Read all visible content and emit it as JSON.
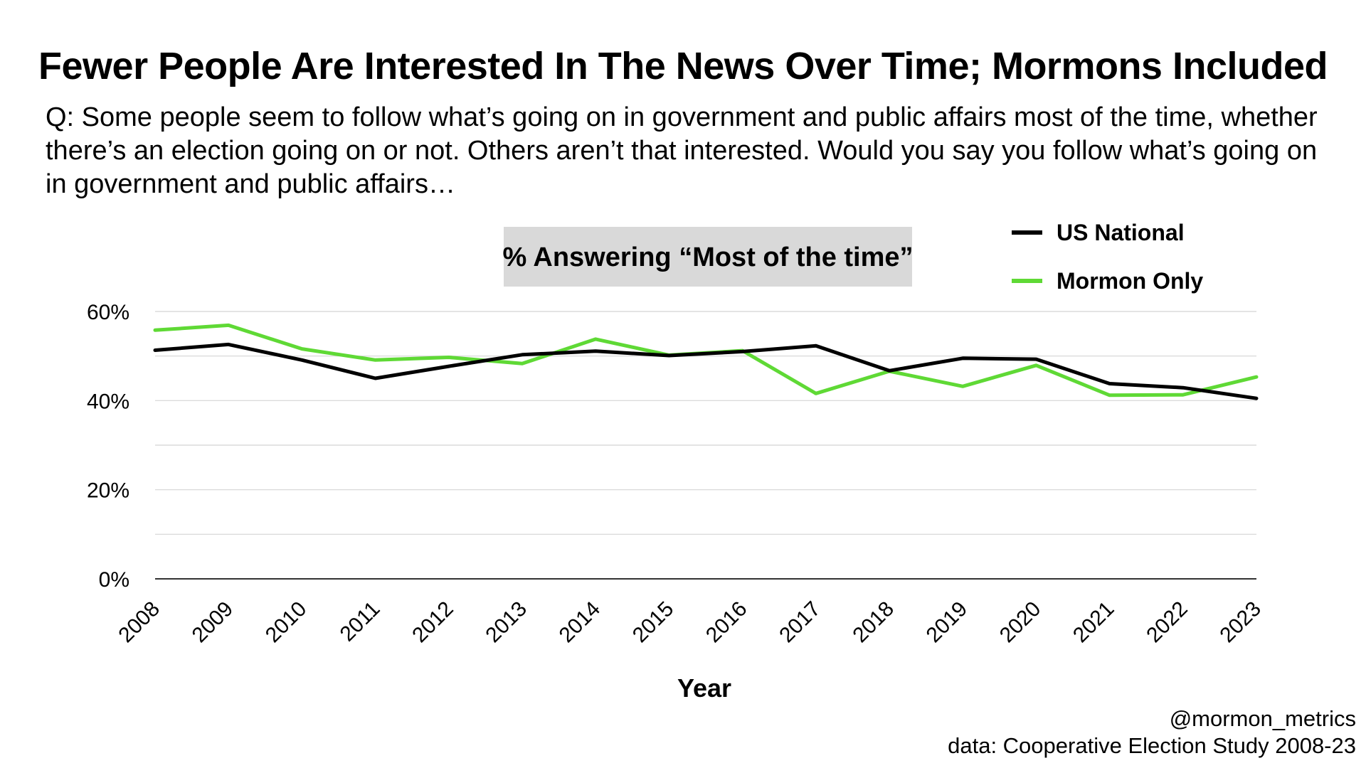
{
  "title": "Fewer People Are Interested In The News Over Time; Mormons Included",
  "subtitle": "Q: Some people seem to follow what’s going on in government and public affairs most of the time, whether there’s an election going on or not. Others aren’t that interested. Would you say you follow what’s going on in government and public affairs…",
  "credit": {
    "handle": "@mormon_metrics",
    "source": "data: Cooperative Election Study 2008-23"
  },
  "chart_data": {
    "type": "line",
    "annotation": "% Answering “Most of the time”",
    "xlabel": "Year",
    "ylabel": "",
    "x": [
      "2008",
      "2009",
      "2010",
      "2011",
      "2012",
      "2013",
      "2014",
      "2015",
      "2016",
      "2017",
      "2018",
      "2019",
      "2020",
      "2021",
      "2022",
      "2023"
    ],
    "ylim": [
      0,
      60
    ],
    "yticks": [
      0,
      20,
      40,
      60
    ],
    "ytick_labels": [
      "0%",
      "20%",
      "40%",
      "60%"
    ],
    "grid": true,
    "legend_position": "top-right",
    "series": [
      {
        "name": "US National",
        "color": "#000000",
        "values": [
          51.3,
          52.6,
          49.1,
          45.0,
          47.7,
          50.3,
          51.1,
          50.1,
          51.0,
          52.3,
          46.7,
          49.5,
          49.3,
          43.8,
          42.9,
          40.5
        ]
      },
      {
        "name": "Mormon Only",
        "color": "#5fd935",
        "values": [
          55.8,
          56.9,
          51.6,
          49.1,
          49.7,
          48.3,
          53.8,
          50.2,
          51.2,
          41.6,
          46.6,
          43.2,
          47.9,
          41.2,
          41.3,
          45.3
        ]
      }
    ]
  }
}
